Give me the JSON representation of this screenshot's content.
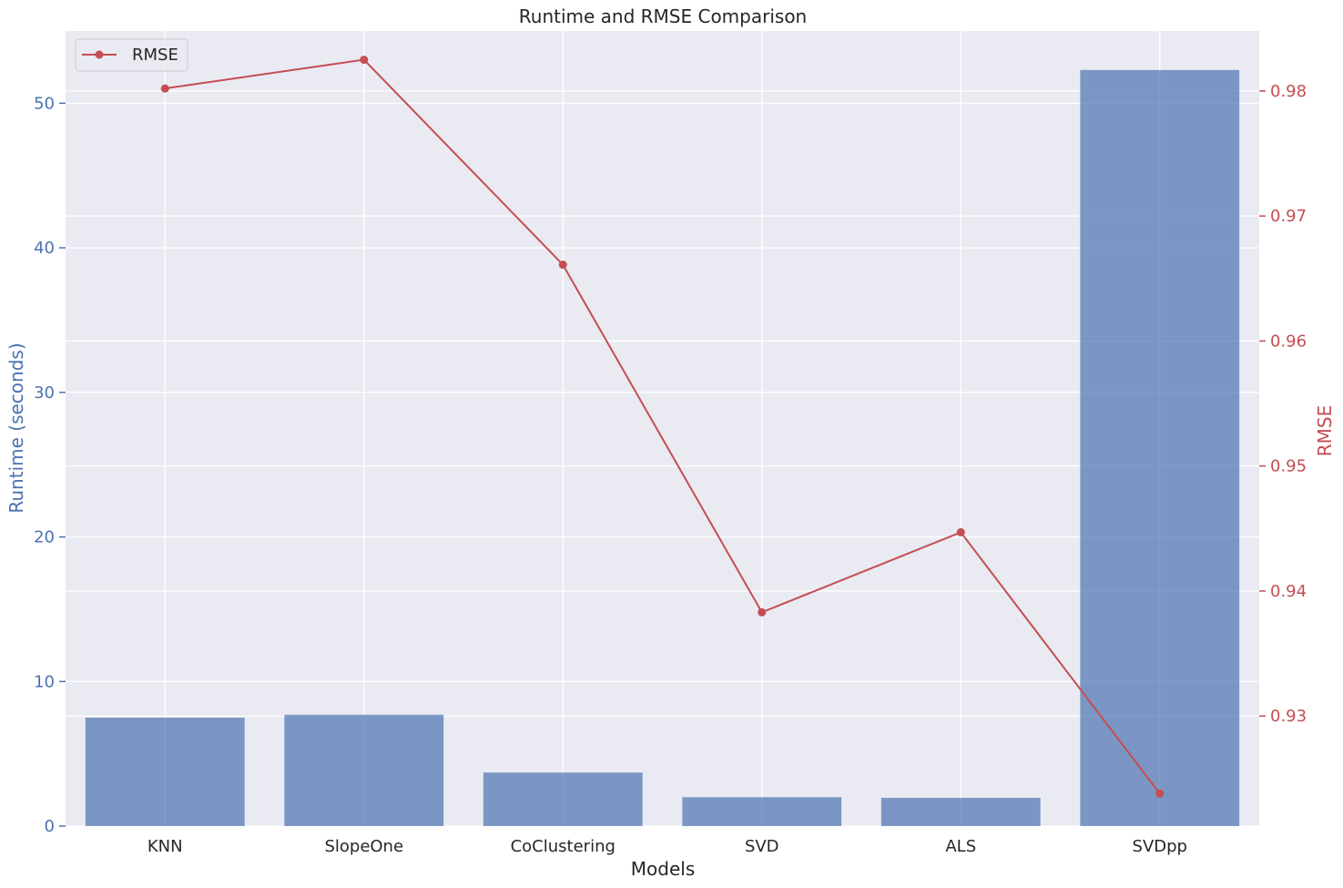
{
  "chart_data": {
    "type": "bar",
    "title": "Runtime and RMSE Comparison",
    "xlabel": "Models",
    "ylabel": "Runtime (seconds)",
    "ylabel_right": "RMSE",
    "categories": [
      "KNN",
      "SlopeOne",
      "CoClustering",
      "SVD",
      "ALS",
      "SVDpp"
    ],
    "series": [
      {
        "type": "bar",
        "axis": "left",
        "values": [
          7.5,
          7.7,
          3.7,
          2.0,
          1.95,
          52.3
        ]
      },
      {
        "name": "RMSE",
        "type": "line",
        "axis": "right",
        "values": [
          0.9802,
          0.9825,
          0.9661,
          0.9383,
          0.9447,
          0.9238
        ]
      }
    ],
    "ylim": [
      0,
      55
    ],
    "y_ticks": [
      0,
      10,
      20,
      30,
      40,
      50
    ],
    "ylim_right": [
      0.9212,
      0.9848
    ],
    "y_ticks_right": [
      0.93,
      0.94,
      0.95,
      0.96,
      0.97,
      0.98
    ],
    "grid": true,
    "legend_position": "top-left",
    "colors": {
      "bar": "#4c72b0",
      "line": "#c44e52",
      "left_axis": "#4c72b0",
      "right_axis": "#c44e52",
      "background": "#eaeaf2",
      "grid": "#ffffff",
      "text": "#262626"
    }
  }
}
